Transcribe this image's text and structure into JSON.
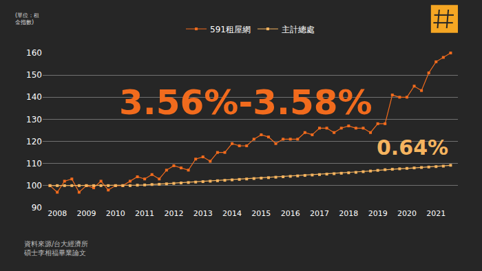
{
  "chart_data": {
    "type": "line",
    "y_label": "(單位：租\n金指數)",
    "annotations": [
      "3.56%-3.58%",
      "0.64%"
    ],
    "source": "資料來源/台大經濟所\n碩士李相福畢業論文",
    "x": [
      2007.75,
      2008,
      2008.25,
      2008.5,
      2008.75,
      2009,
      2009.25,
      2009.5,
      2009.75,
      2010,
      2010.25,
      2010.5,
      2010.75,
      2011,
      2011.25,
      2011.5,
      2011.75,
      2012,
      2012.25,
      2012.5,
      2012.75,
      2013,
      2013.25,
      2013.5,
      2013.75,
      2014,
      2014.25,
      2014.5,
      2014.75,
      2015,
      2015.25,
      2015.5,
      2015.75,
      2016,
      2016.25,
      2016.5,
      2016.75,
      2017,
      2017.25,
      2017.5,
      2017.75,
      2018,
      2018.25,
      2018.5,
      2018.75,
      2019,
      2019.25,
      2019.5,
      2019.75,
      2020,
      2020.25,
      2020.5,
      2020.75,
      2021,
      2021.25,
      2021.5
    ],
    "series": [
      {
        "name": "591租屋網",
        "color": "#f26b1d",
        "marker": "square",
        "line_style": "solid",
        "values": [
          100,
          97,
          102,
          103,
          97,
          100,
          99,
          102,
          98,
          100,
          100,
          102,
          104,
          103,
          105,
          103,
          107,
          109,
          108,
          107,
          112,
          113,
          111,
          115,
          115,
          119,
          118,
          118,
          121,
          123,
          122,
          119,
          121,
          121,
          121,
          124,
          123,
          126,
          126,
          124,
          126,
          127,
          126,
          126,
          124,
          128,
          128,
          141,
          140,
          140,
          145,
          143,
          151,
          156,
          158,
          160
        ]
      },
      {
        "name": "主計總處",
        "color": "#f5b45f",
        "marker": "square",
        "line_style": "solid",
        "values": [
          100,
          100,
          100,
          100,
          100,
          100,
          100,
          100,
          100,
          100,
          100,
          100,
          100.2,
          100.3,
          100.5,
          100.6,
          100.8,
          101,
          101.2,
          101.4,
          101.6,
          101.8,
          102,
          102.2,
          102.4,
          102.6,
          102.8,
          103,
          103.2,
          103.4,
          103.6,
          103.8,
          104,
          104.2,
          104.4,
          104.6,
          104.8,
          105,
          105.2,
          105.4,
          105.6,
          105.8,
          106,
          106.3,
          106.6,
          106.9,
          107.2,
          107.4,
          107.6,
          107.8,
          108,
          108.2,
          108.4,
          108.6,
          108.8,
          109.2
        ]
      }
    ],
    "xlim": [
      2007.5,
      2021.75
    ],
    "xticks": [
      2008,
      2009,
      2010,
      2011,
      2012,
      2013,
      2014,
      2015,
      2016,
      2017,
      2018,
      2019,
      2020,
      2021
    ],
    "ylim": [
      90,
      160
    ],
    "yticks": [
      90,
      100,
      110,
      120,
      130,
      140,
      150,
      160
    ],
    "grid": true,
    "legend": "top"
  }
}
